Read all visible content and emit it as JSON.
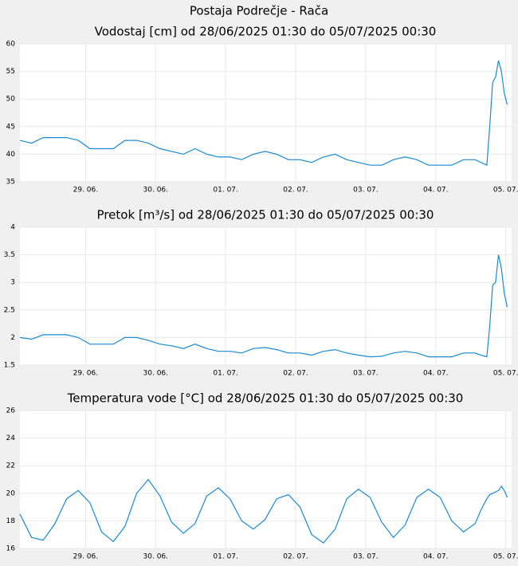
{
  "title": "Postaja Podrečje - Rača",
  "chart_data": [
    {
      "type": "line",
      "title": "Vodostaj [cm] od 28/06/2025 01:30 do 05/07/2025 00:30",
      "x": [
        0,
        4,
        8,
        12,
        16,
        20,
        24,
        28,
        32,
        36,
        40,
        44,
        48,
        52,
        56,
        60,
        64,
        68,
        72,
        76,
        80,
        84,
        88,
        92,
        96,
        100,
        104,
        108,
        112,
        116,
        120,
        124,
        128,
        132,
        136,
        140,
        144,
        148,
        152,
        156,
        158,
        160,
        161,
        162,
        163,
        164,
        165,
        166,
        167
      ],
      "series": [
        {
          "color": "#1a8ad4",
          "values": [
            42.5,
            42,
            43,
            43,
            43,
            42.5,
            41,
            41,
            41,
            42.5,
            42.5,
            42,
            41,
            40.5,
            40,
            41,
            40,
            39.5,
            39.5,
            39,
            40,
            40.5,
            40,
            39,
            39,
            38.5,
            39.5,
            40,
            39,
            38.5,
            38,
            38,
            39,
            39.5,
            39,
            38,
            38,
            38,
            39,
            39,
            38.5,
            38,
            45,
            53,
            54,
            57,
            55,
            51,
            49
          ]
        }
      ],
      "xlim": [
        0,
        168.5
      ],
      "xticks": [
        {
          "value": 22.5,
          "label": "29. 06."
        },
        {
          "value": 46.5,
          "label": "30. 06."
        },
        {
          "value": 70.5,
          "label": "01. 07."
        },
        {
          "value": 94.5,
          "label": "02. 07."
        },
        {
          "value": 118.5,
          "label": "03. 07."
        },
        {
          "value": 142.5,
          "label": "04. 07."
        },
        {
          "value": 166.5,
          "label": "05. 07."
        }
      ],
      "ylim": [
        35,
        60
      ],
      "yticks": [
        35,
        40,
        45,
        50,
        55,
        60
      ],
      "grid": true
    },
    {
      "type": "line",
      "title": "Pretok [m³/s] od 28/06/2025 01:30 do 05/07/2025 00:30",
      "x": [
        0,
        4,
        8,
        12,
        16,
        20,
        24,
        28,
        32,
        36,
        40,
        44,
        48,
        52,
        56,
        60,
        64,
        68,
        72,
        76,
        80,
        84,
        88,
        92,
        96,
        100,
        104,
        108,
        112,
        116,
        120,
        124,
        128,
        132,
        136,
        140,
        144,
        148,
        152,
        156,
        158,
        160,
        161,
        162,
        163,
        164,
        165,
        166,
        167
      ],
      "series": [
        {
          "color": "#1a8ad4",
          "values": [
            2.0,
            1.97,
            2.05,
            2.05,
            2.05,
            2.0,
            1.88,
            1.88,
            1.88,
            2.0,
            2.0,
            1.95,
            1.88,
            1.85,
            1.8,
            1.88,
            1.8,
            1.75,
            1.75,
            1.72,
            1.8,
            1.82,
            1.78,
            1.72,
            1.72,
            1.68,
            1.75,
            1.78,
            1.72,
            1.68,
            1.65,
            1.66,
            1.72,
            1.75,
            1.72,
            1.65,
            1.65,
            1.65,
            1.72,
            1.72,
            1.68,
            1.65,
            2.2,
            2.95,
            3.0,
            3.5,
            3.25,
            2.8,
            2.55
          ]
        }
      ],
      "xlim": [
        0,
        168.5
      ],
      "xticks": [
        {
          "value": 22.5,
          "label": "29. 06."
        },
        {
          "value": 46.5,
          "label": "30. 06."
        },
        {
          "value": 70.5,
          "label": "01. 07."
        },
        {
          "value": 94.5,
          "label": "02. 07."
        },
        {
          "value": 118.5,
          "label": "03. 07."
        },
        {
          "value": 142.5,
          "label": "04. 07."
        },
        {
          "value": 166.5,
          "label": "05. 07."
        }
      ],
      "ylim": [
        1.5,
        4
      ],
      "yticks": [
        1.5,
        2,
        2.5,
        3,
        3.5,
        4
      ],
      "grid": true
    },
    {
      "type": "line",
      "title": "Temperatura vode [°C] od 28/06/2025 01:30 do 05/07/2025 00:30",
      "x": [
        0,
        4,
        8,
        12,
        16,
        20,
        24,
        28,
        32,
        36,
        40,
        44,
        48,
        52,
        56,
        60,
        64,
        68,
        72,
        76,
        80,
        84,
        88,
        92,
        96,
        100,
        104,
        108,
        112,
        116,
        120,
        124,
        128,
        132,
        136,
        140,
        144,
        148,
        152,
        156,
        158,
        160,
        161,
        162,
        163,
        164,
        165,
        166,
        167
      ],
      "series": [
        {
          "color": "#1a8ad4",
          "values": [
            18.5,
            16.8,
            16.6,
            17.8,
            19.6,
            20.2,
            19.3,
            17.2,
            16.5,
            17.6,
            20.0,
            21.0,
            19.8,
            17.9,
            17.1,
            17.8,
            19.8,
            20.4,
            19.6,
            18.0,
            17.4,
            18.1,
            19.6,
            19.9,
            19.0,
            17.0,
            16.4,
            17.4,
            19.6,
            20.3,
            19.7,
            17.9,
            16.8,
            17.7,
            19.7,
            20.3,
            19.7,
            18.0,
            17.2,
            17.8,
            18.8,
            19.6,
            19.9,
            20.0,
            20.1,
            20.2,
            20.5,
            20.2,
            19.7
          ]
        }
      ],
      "xlim": [
        0,
        168.5
      ],
      "xticks": [
        {
          "value": 22.5,
          "label": "29. 06."
        },
        {
          "value": 46.5,
          "label": "30. 06."
        },
        {
          "value": 70.5,
          "label": "01. 07."
        },
        {
          "value": 94.5,
          "label": "02. 07."
        },
        {
          "value": 118.5,
          "label": "03. 07."
        },
        {
          "value": 142.5,
          "label": "04. 07."
        },
        {
          "value": 166.5,
          "label": "05. 07."
        }
      ],
      "ylim": [
        16,
        26
      ],
      "yticks": [
        16,
        18,
        20,
        22,
        24,
        26
      ],
      "grid": true
    }
  ]
}
